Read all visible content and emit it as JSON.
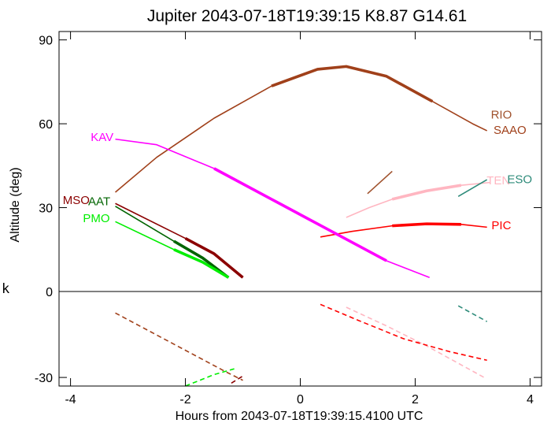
{
  "chart_data": {
    "type": "line",
    "title": "Jupiter 2043-07-18T19:39:15  K8.87  G14.61",
    "xlabel": "Hours from 2043-07-18T19:39:15.4100 UTC",
    "ylabel": "Altitude (deg)",
    "lower_panel_label": "k",
    "xlim": [
      -4.2,
      4.2
    ],
    "ylim_altitude": [
      0,
      93
    ],
    "ylim_k": [
      -33,
      0
    ],
    "x_ticks": [
      -4,
      -2,
      0,
      2,
      4
    ],
    "x_tick_labels": [
      "-4",
      "-2",
      "0",
      "2",
      "4"
    ],
    "y_ticks": [
      90,
      60,
      30,
      0,
      -30
    ],
    "y_tick_labels": [
      "90",
      "60",
      "30",
      "0",
      "-30"
    ],
    "grid": false,
    "series": [
      {
        "name": "RIO",
        "color": "#a0522d",
        "label_x": 3.5,
        "label_y": 63.5,
        "altitude": {
          "x": [
            1.17,
            1.6
          ],
          "y": [
            35,
            43
          ]
        },
        "k": null
      },
      {
        "name": "SAAO",
        "color": "#a0401a",
        "label_x": 3.65,
        "label_y": 58,
        "altitude": {
          "x": [
            -3.22,
            -2.5,
            -1.5,
            -0.5,
            0.3,
            0.8,
            1.5,
            2.3,
            3.0,
            3.25
          ],
          "y": [
            35.5,
            48,
            62,
            73.5,
            79.5,
            80.5,
            77,
            68,
            60,
            57.5
          ]
        },
        "k": {
          "x": [
            -3.22,
            -1.3,
            -1.15,
            -1.0
          ],
          "y": [
            -7.5,
            -28,
            -29.5,
            -31
          ]
        }
      },
      {
        "name": "TEN",
        "color": "#ffb6c1",
        "label_x": 3.45,
        "label_y": 40,
        "altitude": {
          "x": [
            0.8,
            1.2,
            1.6,
            2.2,
            2.8,
            3.3
          ],
          "y": [
            26.5,
            30,
            33,
            36,
            38,
            39
          ]
        },
        "k": {
          "x": [
            0.8,
            1.5,
            2.2,
            3.2
          ],
          "y": [
            -5.5,
            -12,
            -19,
            -30
          ]
        }
      },
      {
        "name": "ESO",
        "color": "#2e8b7a",
        "label_x": 3.82,
        "label_y": 40.5,
        "altitude": {
          "x": [
            2.75,
            3.25
          ],
          "y": [
            34,
            40
          ]
        },
        "k": {
          "x": [
            2.75,
            3.25
          ],
          "y": [
            -5,
            -10.5
          ]
        }
      },
      {
        "name": "PIC",
        "color": "#ff0000",
        "label_x": 3.5,
        "label_y": 24,
        "altitude": {
          "x": [
            0.35,
            0.9,
            1.6,
            2.2,
            2.8,
            3.25
          ],
          "y": [
            19.5,
            21.5,
            23.5,
            24.2,
            24,
            23
          ]
        },
        "k": {
          "x": [
            0.35,
            1.0,
            1.8,
            2.6,
            3.25
          ],
          "y": [
            -4.5,
            -10,
            -16.5,
            -21,
            -24
          ]
        }
      },
      {
        "name": "KAV",
        "color": "#ff00ff",
        "label_x": -3.45,
        "label_y": 55.5,
        "altitude": {
          "x": [
            -3.22,
            -2.5,
            -1.5,
            -0.5,
            0.5,
            1.5,
            2.25
          ],
          "y": [
            54.5,
            52.5,
            44,
            33,
            22,
            11,
            5
          ]
        },
        "k": null
      },
      {
        "name": "MSO",
        "color": "#8b0000",
        "label_x": -3.9,
        "label_y": 33,
        "altitude": {
          "x": [
            -3.22,
            -2.0,
            -1.5,
            -1.0
          ],
          "y": [
            31.5,
            19,
            13.5,
            5
          ]
        },
        "k": {
          "x": [
            -1.2,
            -1.0
          ],
          "y": [
            -32,
            -29.5
          ]
        }
      },
      {
        "name": "AAT",
        "color": "#006400",
        "label_x": -3.5,
        "label_y": 32.5,
        "altitude": {
          "x": [
            -3.22,
            -2.2,
            -1.7,
            -1.25
          ],
          "y": [
            30.5,
            18,
            12,
            5
          ]
        },
        "k": null
      },
      {
        "name": "PMO",
        "color": "#00ee00",
        "label_x": -3.55,
        "label_y": 26.5,
        "altitude": {
          "x": [
            -3.22,
            -2.2,
            -1.7,
            -1.25
          ],
          "y": [
            25,
            15,
            10.5,
            5
          ]
        },
        "k": {
          "x": [
            -2.0,
            -1.5,
            -1.15
          ],
          "y": [
            -33,
            -29,
            -27
          ]
        }
      }
    ]
  }
}
